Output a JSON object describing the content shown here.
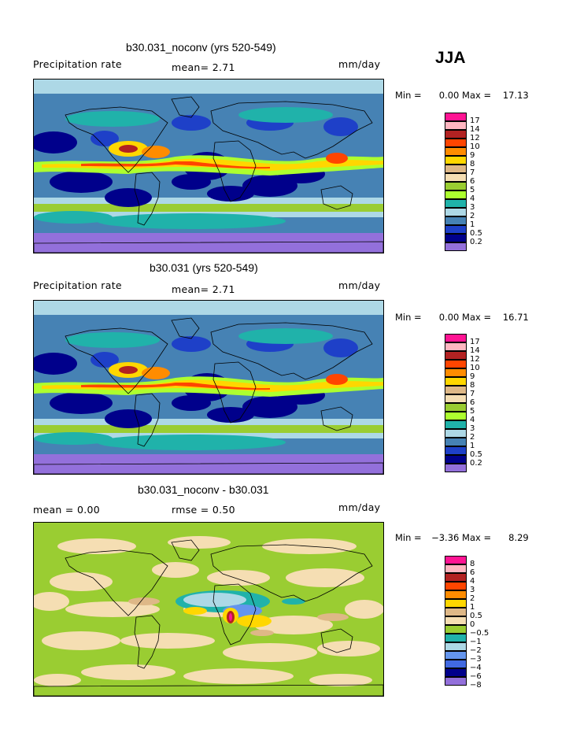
{
  "season": "JJA",
  "panels": [
    {
      "title": "b30.031_noconv (yrs 520-549)",
      "left_label": "Precipitation rate",
      "mid_label": "mean=   2.71",
      "unit": "mm/day",
      "min_label": "Min =",
      "min_value": "0.00",
      "max_label": "Max =",
      "max_value": "17.13",
      "kind": "precip",
      "legend_labels": [
        "17",
        "14",
        "12",
        "10",
        "9",
        "8",
        "7",
        "6",
        "5",
        "4",
        "3",
        "2",
        "1",
        "0.5",
        "0.2"
      ]
    },
    {
      "title": "b30.031 (yrs 520-549)",
      "left_label": "Precipitation rate",
      "mid_label": "mean=   2.71",
      "unit": "mm/day",
      "min_label": "Min =",
      "min_value": "0.00",
      "max_label": "Max =",
      "max_value": "16.71",
      "kind": "precip",
      "legend_labels": [
        "17",
        "14",
        "12",
        "10",
        "9",
        "8",
        "7",
        "6",
        "5",
        "4",
        "3",
        "2",
        "1",
        "0.5",
        "0.2"
      ]
    },
    {
      "title": "b30.031_noconv - b30.031",
      "left_label": "mean =    0.00",
      "mid_label": "rmse =    0.50",
      "unit": "mm/day",
      "min_label": "Min =",
      "min_value": "−3.36",
      "max_label": "Max =",
      "max_value": "8.29",
      "kind": "diff",
      "legend_labels": [
        "8",
        "6",
        "4",
        "3",
        "2",
        "1",
        "0.5",
        "0",
        "−0.5",
        "−1",
        "−2",
        "−3",
        "−4",
        "−6",
        "−8"
      ]
    }
  ],
  "colors": {
    "precip": [
      "#ff1493",
      "#ffb6c1",
      "#b22222",
      "#ff4500",
      "#ff8c00",
      "#ffd700",
      "#deb887",
      "#f5deb3",
      "#9acd32",
      "#adff2f",
      "#20b2aa",
      "#add8e6",
      "#4682b4",
      "#1e40c8",
      "#00008b",
      "#9370db"
    ],
    "diff": [
      "#ff1493",
      "#ffb6c1",
      "#b22222",
      "#ff4500",
      "#ff8c00",
      "#ffd700",
      "#deb887",
      "#f5deb3",
      "#9acd32",
      "#20b2aa",
      "#add8e6",
      "#6495ed",
      "#4169e1",
      "#00008b",
      "#9370db"
    ]
  }
}
